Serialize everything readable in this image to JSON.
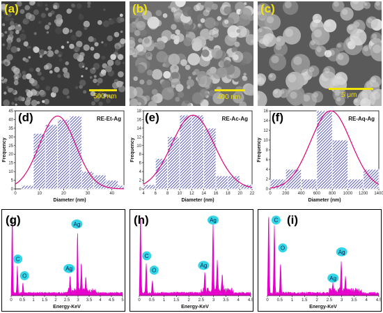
{
  "sem_panels": [
    {
      "label": "(a)",
      "scale": "500 nm",
      "palette": "dark"
    },
    {
      "label": "(b)",
      "scale": "400 nm",
      "palette": "mid"
    },
    {
      "label": "(c)",
      "scale": "5 μm",
      "palette": "spheres"
    }
  ],
  "hist_panels": [
    {
      "label": "(d)",
      "sample": "RE-Et-Ag"
    },
    {
      "label": "(e)",
      "sample": "RE-Ac-Ag"
    },
    {
      "label": "(f)",
      "sample": "RE-Aq-Ag"
    }
  ],
  "eds_panels": [
    {
      "label": "(g)",
      "elements": [
        "C",
        "O",
        "Ag",
        "Ag"
      ]
    },
    {
      "label": "(h)",
      "elements": [
        "C",
        "O",
        "Ag",
        "Ag"
      ]
    },
    {
      "label": "(i)",
      "elements": [
        "C",
        "O",
        "Ag",
        "Ag"
      ]
    }
  ],
  "colors": {
    "bar": "#2f2fb3",
    "fit": "#e0007a",
    "eds": "#e600cc",
    "bubble": "#33d6e6",
    "sem_label": "#f2e30a"
  },
  "chart_data": [
    {
      "type": "bar",
      "title": "",
      "sample": "RE-Et-Ag",
      "xlabel": "Diameter (nm)",
      "ylabel": "Frequency",
      "xlim": [
        0,
        45
      ],
      "ylim": [
        0,
        45
      ],
      "xticks": [
        "0",
        "10",
        "20",
        "30",
        "40"
      ],
      "yticks": [
        "0",
        "5",
        "10",
        "15",
        "20",
        "25",
        "30",
        "35",
        "40",
        "45"
      ],
      "xtick_values": [
        0,
        10,
        20,
        30,
        40
      ],
      "ytick_values": [
        0,
        5,
        10,
        15,
        20,
        25,
        30,
        35,
        40,
        45
      ],
      "bin_edges": [
        2.5,
        7.5,
        12.5,
        17.5,
        22.5,
        27.5,
        32.5,
        37.5,
        42.5,
        45
      ],
      "values": [
        2,
        32,
        37,
        40,
        42,
        10,
        8,
        5,
        2
      ],
      "fit": {
        "type": "gaussian",
        "peak": 42,
        "center": 17.5,
        "sigma": 7.5
      }
    },
    {
      "type": "bar",
      "title": "",
      "sample": "RE-Ac-Ag",
      "xlabel": "Diameter (nm)",
      "ylabel": "Frequency",
      "xlim": [
        4,
        22
      ],
      "ylim": [
        0,
        18
      ],
      "xticks": [
        "4",
        "6",
        "8",
        "10",
        "12",
        "14",
        "16",
        "18",
        "20",
        "22"
      ],
      "yticks": [
        "0",
        "2",
        "4",
        "6",
        "8",
        "10",
        "12",
        "14",
        "16",
        "18"
      ],
      "xtick_values": [
        4,
        6,
        8,
        10,
        12,
        14,
        16,
        18,
        20,
        22
      ],
      "ytick_values": [
        0,
        2,
        4,
        6,
        8,
        10,
        12,
        14,
        16,
        18
      ],
      "bin_edges": [
        4,
        6,
        8,
        10,
        12,
        14,
        16,
        18,
        20,
        22
      ],
      "values": [
        1,
        7,
        12,
        17,
        17,
        14,
        3,
        3,
        1
      ],
      "fit": {
        "type": "gaussian",
        "peak": 17,
        "center": 12.2,
        "sigma": 3.5
      }
    },
    {
      "type": "bar",
      "title": "",
      "sample": "RE-Aq-Ag",
      "xlabel": "Diameter (nm)",
      "ylabel": "Frequency",
      "xlim": [
        0,
        1400
      ],
      "ylim": [
        0,
        16
      ],
      "xticks": [
        "0",
        "200",
        "400",
        "600",
        "800",
        "1000",
        "1200",
        "1400"
      ],
      "yticks": [
        "0",
        "2",
        "4",
        "6",
        "8",
        "10",
        "12",
        "14",
        "16"
      ],
      "xtick_values": [
        0,
        200,
        400,
        600,
        800,
        1000,
        1200,
        1400
      ],
      "ytick_values": [
        0,
        2,
        4,
        6,
        8,
        10,
        12,
        14,
        16
      ],
      "bin_edges": [
        0,
        200,
        400,
        600,
        800,
        1000,
        1200,
        1400
      ],
      "values": [
        2,
        4,
        2,
        16,
        10,
        2,
        4
      ],
      "fit": {
        "type": "gaussian",
        "peak": 16,
        "center": 780,
        "sigma": 260
      }
    },
    {
      "type": "line",
      "title": "",
      "xlabel": "Energy-KeV",
      "ylabel": "",
      "xlim": [
        0,
        5
      ],
      "xticks": [
        "0",
        "0.5",
        "1",
        "1.5",
        "2",
        "2.5",
        "3",
        "3.5",
        "4",
        "4.5",
        "5"
      ],
      "xtick_values": [
        0,
        0.5,
        1,
        1.5,
        2,
        2.5,
        3,
        3.5,
        4,
        4.5,
        5
      ],
      "peaks": [
        {
          "x": 0.05,
          "h": 1.0
        },
        {
          "x": 0.28,
          "h": 0.33
        },
        {
          "x": 0.53,
          "h": 0.12
        },
        {
          "x": 2.65,
          "h": 0.18
        },
        {
          "x": 2.98,
          "h": 0.75
        },
        {
          "x": 3.15,
          "h": 0.35
        },
        {
          "x": 3.35,
          "h": 0.15
        }
      ],
      "element_labels": [
        {
          "text": "C",
          "x": 0.3,
          "h": 0.46
        },
        {
          "text": "O",
          "x": 0.6,
          "h": 0.25
        },
        {
          "text": "Ag",
          "x": 2.6,
          "h": 0.34
        },
        {
          "text": "Ag",
          "x": 2.95,
          "h": 0.9
        }
      ]
    },
    {
      "type": "line",
      "title": "",
      "xlabel": "Energy-KeV",
      "ylabel": "",
      "xlim": [
        0,
        4.5
      ],
      "xticks": [
        "0",
        "0.5",
        "1",
        "1.5",
        "2",
        "2.5",
        "3",
        "3.5",
        "4",
        "4.5"
      ],
      "xtick_values": [
        0,
        0.5,
        1,
        1.5,
        2,
        2.5,
        3,
        3.5,
        4,
        4.5
      ],
      "peaks": [
        {
          "x": 0.05,
          "h": 1.0
        },
        {
          "x": 0.28,
          "h": 0.38
        },
        {
          "x": 0.53,
          "h": 0.15
        },
        {
          "x": 2.65,
          "h": 0.22
        },
        {
          "x": 2.98,
          "h": 0.85
        },
        {
          "x": 3.15,
          "h": 0.4
        },
        {
          "x": 3.35,
          "h": 0.2
        }
      ],
      "element_labels": [
        {
          "text": "C",
          "x": 0.3,
          "h": 0.5
        },
        {
          "text": "O",
          "x": 0.6,
          "h": 0.32
        },
        {
          "text": "Ag",
          "x": 2.6,
          "h": 0.38
        },
        {
          "text": "Ag",
          "x": 2.98,
          "h": 0.95
        }
      ]
    },
    {
      "type": "line",
      "title": "",
      "xlabel": "Energy-KeV",
      "ylabel": "",
      "xlim": [
        0,
        4.5
      ],
      "xticks": [
        "0",
        "0.5",
        "1",
        "1.5",
        "2",
        "2.5",
        "3",
        "3.5",
        "4",
        "4.5"
      ],
      "xtick_values": [
        0,
        0.5,
        1,
        1.5,
        2,
        2.5,
        3,
        3.5,
        4,
        4.5
      ],
      "peaks": [
        {
          "x": 0.05,
          "h": 1.0
        },
        {
          "x": 0.28,
          "h": 0.85
        },
        {
          "x": 0.53,
          "h": 0.38
        },
        {
          "x": 2.65,
          "h": 0.08
        },
        {
          "x": 2.98,
          "h": 0.35
        },
        {
          "x": 3.15,
          "h": 0.18
        }
      ],
      "element_labels": [
        {
          "text": "C",
          "x": 0.35,
          "h": 0.95
        },
        {
          "text": "O",
          "x": 0.62,
          "h": 0.6
        },
        {
          "text": "Ag",
          "x": 2.65,
          "h": 0.22
        },
        {
          "text": "Ag",
          "x": 3.0,
          "h": 0.55
        }
      ]
    }
  ]
}
